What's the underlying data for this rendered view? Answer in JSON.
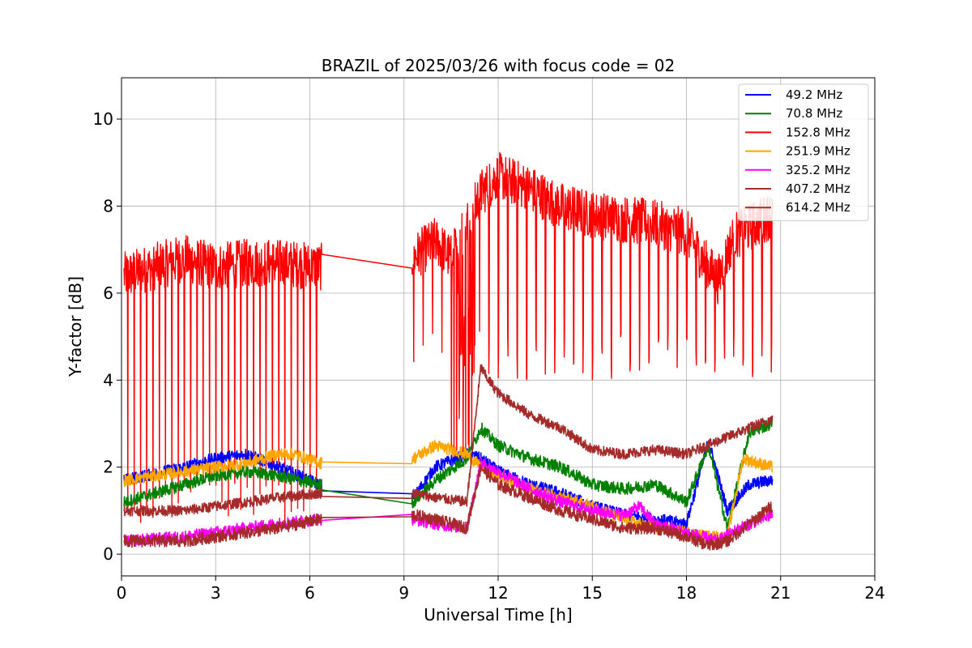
{
  "chart_data": {
    "type": "line",
    "title": "BRAZIL of 2025/03/26 with focus code = 02",
    "xlabel": "Universal Time [h]",
    "ylabel": "Y-factor [dB]",
    "xlim": [
      0,
      24
    ],
    "ylim": [
      -0.5,
      10.95
    ],
    "xticks": [
      0,
      3,
      6,
      9,
      12,
      15,
      18,
      21,
      24
    ],
    "yticks": [
      0,
      2,
      4,
      6,
      8,
      10
    ],
    "grid": true,
    "legend_position": "upper right",
    "segments": [
      [
        0.08,
        6.38
      ],
      [
        9.25,
        11.45
      ],
      [
        11.45,
        20.75
      ]
    ],
    "series": [
      {
        "name": " 49.2 MHz",
        "color": "#0000ff",
        "x": [
          0.1,
          2,
          3,
          4,
          5,
          6.3,
          9.3,
          10,
          11,
          11.45,
          12,
          13,
          14,
          15,
          16,
          17,
          18,
          18.7,
          19.3,
          20,
          20.7
        ],
        "y": [
          1.7,
          2.0,
          2.2,
          2.3,
          2.0,
          1.6,
          1.3,
          2.0,
          2.3,
          2.2,
          1.9,
          1.6,
          1.4,
          1.1,
          0.9,
          0.8,
          0.7,
          2.6,
          1.0,
          1.6,
          1.7
        ]
      },
      {
        "name": " 70.8 MHz",
        "color": "#008000",
        "x": [
          0.1,
          2,
          3,
          4,
          5,
          6.3,
          9.3,
          10,
          11,
          11.45,
          12,
          13,
          14,
          15,
          16,
          17,
          18,
          18.7,
          19.3,
          20,
          20.7
        ],
        "y": [
          1.2,
          1.6,
          1.8,
          1.9,
          1.8,
          1.6,
          1.2,
          1.7,
          2.2,
          2.9,
          2.5,
          2.2,
          2.0,
          1.6,
          1.5,
          1.6,
          1.2,
          2.5,
          0.6,
          2.8,
          3.0
        ]
      },
      {
        "name": "152.8 MHz",
        "color": "#ff0000",
        "x": [
          0.1,
          1,
          2,
          3,
          4,
          5,
          6.35,
          9.25,
          10,
          10.5,
          11.45,
          12,
          13,
          14,
          15,
          16,
          17,
          18,
          18.5,
          19,
          19.5,
          20,
          20.7
        ],
        "y": [
          6.4,
          6.6,
          6.8,
          6.6,
          6.7,
          6.7,
          6.6,
          6.8,
          7.2,
          6.8,
          8.3,
          8.7,
          8.4,
          8.0,
          7.8,
          7.7,
          7.6,
          7.4,
          6.8,
          6.3,
          7.3,
          7.5,
          7.8
        ],
        "dips": {
          "sep_1": 0.2,
          "sep_2": 0.3,
          "low_1": 0.6,
          "low_2": 4.0
        }
      },
      {
        "name": "251.9 MHz",
        "color": "#ffa500",
        "x": [
          0.1,
          2,
          3,
          4,
          5,
          5.5,
          6.3,
          9.3,
          10,
          11,
          11.45,
          12,
          13,
          14,
          15,
          16,
          17,
          18,
          18.7,
          19.3,
          19.8,
          20.7
        ],
        "y": [
          1.7,
          1.9,
          2.0,
          2.1,
          2.3,
          2.3,
          2.1,
          2.2,
          2.5,
          2.3,
          2.0,
          1.8,
          1.5,
          1.3,
          1.1,
          0.8,
          0.6,
          0.5,
          0.4,
          0.4,
          2.2,
          2.0
        ]
      },
      {
        "name": "325.2 MHz",
        "color": "#ff00ff",
        "x": [
          0.1,
          2,
          3,
          4,
          5,
          6.3,
          9.3,
          10,
          11,
          11.45,
          12,
          13,
          14,
          15,
          16,
          16.5,
          17,
          18,
          19,
          19.7,
          20.7
        ],
        "y": [
          0.3,
          0.4,
          0.5,
          0.6,
          0.7,
          0.8,
          0.8,
          0.7,
          0.6,
          2.1,
          1.9,
          1.5,
          1.2,
          1.0,
          0.9,
          1.1,
          0.7,
          0.5,
          0.3,
          0.6,
          0.9
        ]
      },
      {
        "name": "407.2 MHz",
        "color": "#a52a2a",
        "x": [
          0.1,
          2,
          3,
          4,
          5,
          6.3,
          9.3,
          10,
          11,
          11.45,
          12,
          13,
          14,
          15,
          16,
          17,
          18,
          18.7,
          19.3,
          20,
          20.7
        ],
        "y": [
          0.3,
          0.3,
          0.4,
          0.5,
          0.6,
          0.8,
          0.9,
          0.8,
          0.6,
          2.0,
          1.6,
          1.3,
          1.0,
          0.8,
          0.6,
          0.6,
          0.4,
          0.2,
          0.3,
          0.7,
          1.1
        ]
      },
      {
        "name": "614.2 MHz",
        "color": "#a52a2a",
        "x": [
          0.1,
          2,
          3,
          4,
          5,
          6.3,
          9.3,
          10,
          11,
          11.45,
          11.6,
          12,
          13,
          14,
          15,
          16,
          17,
          18,
          19,
          20,
          20.7
        ],
        "y": [
          1.0,
          1.0,
          1.1,
          1.2,
          1.3,
          1.4,
          1.4,
          1.3,
          1.2,
          4.3,
          4.1,
          3.7,
          3.2,
          2.9,
          2.4,
          2.3,
          2.4,
          2.3,
          2.6,
          2.9,
          3.1
        ]
      }
    ]
  }
}
